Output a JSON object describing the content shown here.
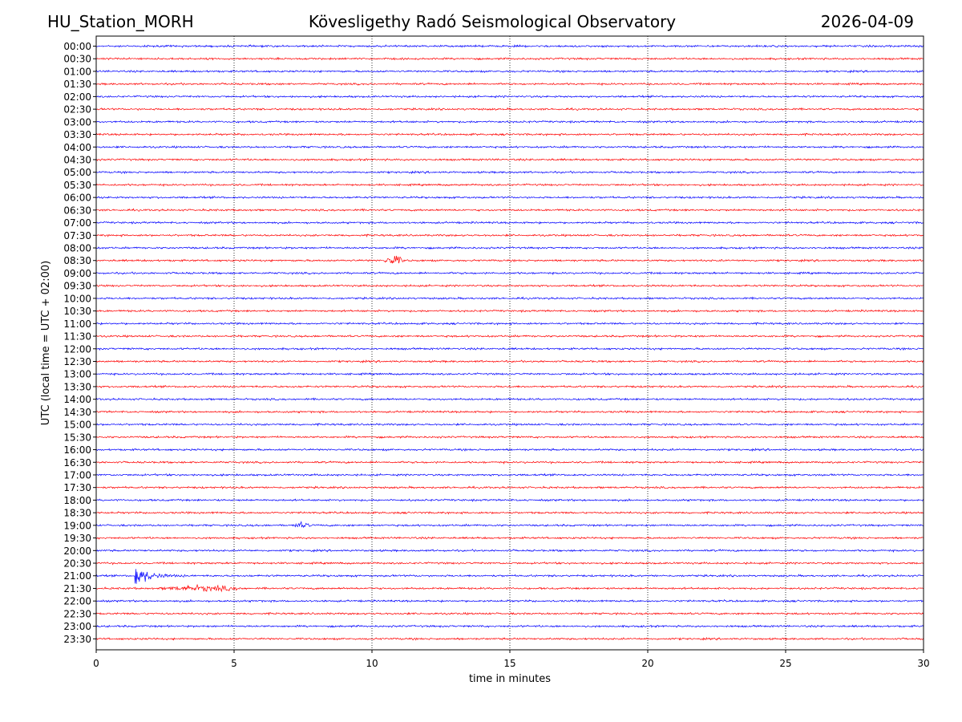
{
  "header": {
    "station": "HU_Station_MORH",
    "observatory": "Kövesligethy Radó Seismological Observatory",
    "date": "2026-04-09"
  },
  "chart_data": {
    "type": "line",
    "title": "Kövesligethy Radó Seismological Observatory",
    "xlabel": "time in minutes",
    "ylabel": "UTC (local time = UTC + 02:00)",
    "xlim": [
      0,
      30
    ],
    "xticks": [
      0,
      5,
      10,
      15,
      20,
      25,
      30
    ],
    "grid": "vertical dotted at x = 5, 10, 15, 20, 25",
    "row_labels": [
      "00:00",
      "00:30",
      "01:00",
      "01:30",
      "02:00",
      "02:30",
      "03:00",
      "03:30",
      "04:00",
      "04:30",
      "05:00",
      "05:30",
      "06:00",
      "06:30",
      "07:00",
      "07:30",
      "08:00",
      "08:30",
      "09:00",
      "09:30",
      "10:00",
      "10:30",
      "11:00",
      "11:30",
      "12:00",
      "12:30",
      "13:00",
      "13:30",
      "14:00",
      "14:30",
      "15:00",
      "15:30",
      "16:00",
      "16:30",
      "17:00",
      "17:30",
      "18:00",
      "18:30",
      "19:00",
      "19:30",
      "20:00",
      "20:30",
      "21:00",
      "21:30",
      "22:00",
      "22:30",
      "23:00",
      "23:30"
    ],
    "trace_colors": [
      "#0000ff",
      "#ff0000"
    ],
    "events": [
      {
        "row": "08:30",
        "start_min": 10.4,
        "end_min": 11.2,
        "amplitude": "moderate"
      },
      {
        "row": "19:00",
        "start_min": 7.1,
        "end_min": 7.8,
        "amplitude": "small"
      },
      {
        "row": "21:00",
        "start_min": 1.4,
        "end_min": 4.0,
        "amplitude": "large"
      },
      {
        "row": "21:30",
        "start_min": 2.2,
        "end_min": 5.5,
        "amplitude": "small"
      }
    ]
  }
}
